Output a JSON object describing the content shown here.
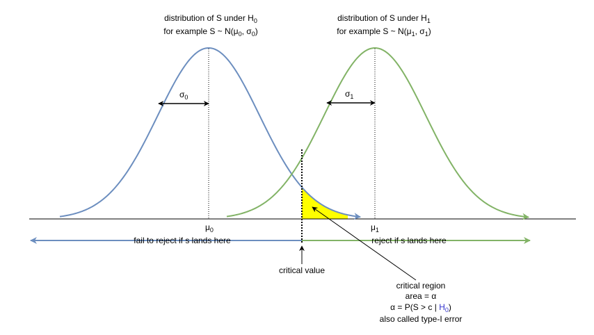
{
  "colors": {
    "h0_curve": "#6c8ebf",
    "h1_curve": "#82b366",
    "critical_fill": "#ffff00",
    "alpha_h0": "#3333cc",
    "ink": "#000000"
  },
  "h0": {
    "title_prefix": "distribution of S under H",
    "title_sub": "0",
    "example_prefix": "for example S ~ N(μ",
    "example_mid_sub": "0",
    "example_mid": ", σ",
    "example_end_sub": "0",
    "example_suffix": ")",
    "sigma_label": "σ",
    "sigma_sub": "0",
    "mu_label": "μ",
    "mu_sub": "0"
  },
  "h1": {
    "title_prefix": "distribution of S under H",
    "title_sub": "1",
    "example_prefix": "for example S ~ N(μ",
    "example_mid_sub": "1",
    "example_mid": ", σ",
    "example_end_sub": "1",
    "example_suffix": ")",
    "sigma_label": "σ",
    "sigma_sub": "1",
    "mu_label": "μ",
    "mu_sub": "1"
  },
  "regions": {
    "fail_to_reject": "fail to reject if s lands here",
    "reject": "reject if s lands here"
  },
  "critical_value_label": "critical value",
  "critical_region": {
    "line1": "critical region",
    "line2": "area = α",
    "line3_prefix": "α = P(S > c | ",
    "line3_h": "H",
    "line3_sub": "0",
    "line3_suffix": ")",
    "line4": "also called type-I error"
  }
}
